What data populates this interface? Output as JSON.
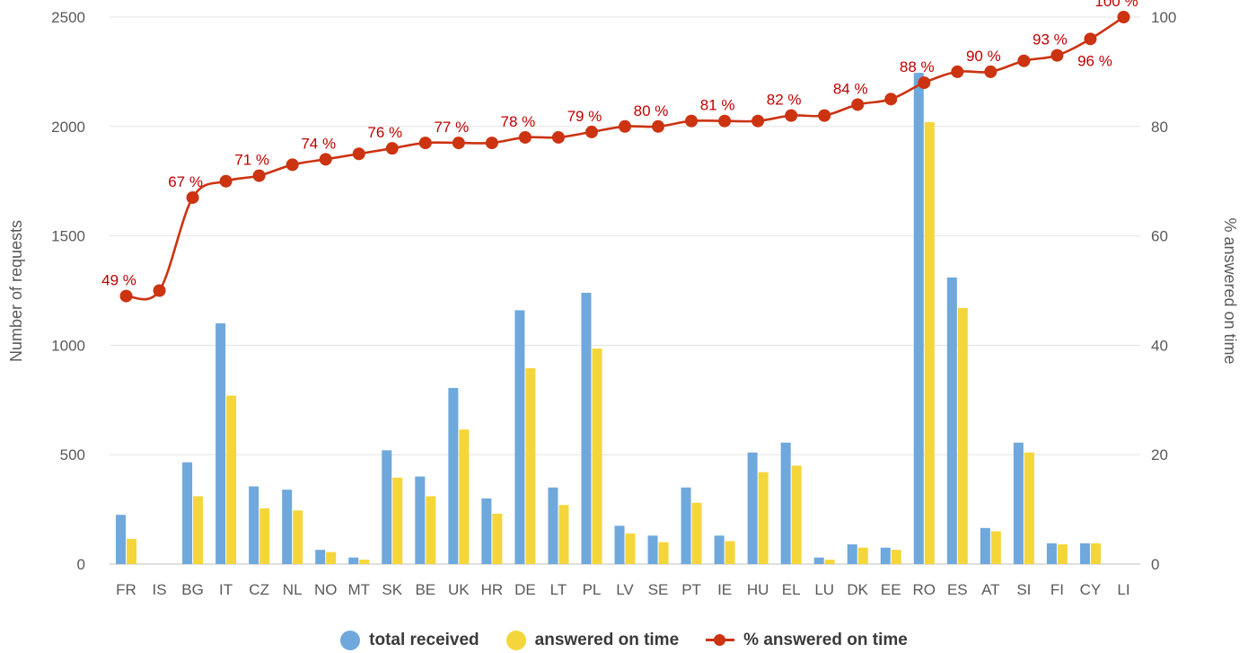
{
  "chart_data": {
    "type": "bar+line",
    "categories": [
      "FR",
      "IS",
      "BG",
      "IT",
      "CZ",
      "NL",
      "NO",
      "MT",
      "SK",
      "BE",
      "UK",
      "HR",
      "DE",
      "LT",
      "PL",
      "LV",
      "SE",
      "PT",
      "IE",
      "HU",
      "EL",
      "LU",
      "DK",
      "EE",
      "RO",
      "ES",
      "AT",
      "SI",
      "FI",
      "CY",
      "LI"
    ],
    "series": [
      {
        "name": "total received",
        "axis": "left",
        "color": "#6fa8dc",
        "values": [
          225,
          0,
          465,
          1100,
          355,
          340,
          65,
          30,
          520,
          400,
          805,
          300,
          1160,
          350,
          1240,
          175,
          130,
          350,
          130,
          510,
          555,
          30,
          90,
          75,
          2245,
          1310,
          165,
          555,
          95,
          95,
          0
        ]
      },
      {
        "name": "answered on time",
        "axis": "left",
        "color": "#f4d63a",
        "values": [
          115,
          0,
          310,
          770,
          255,
          245,
          55,
          20,
          395,
          310,
          615,
          230,
          895,
          270,
          985,
          140,
          100,
          280,
          105,
          420,
          450,
          20,
          75,
          65,
          2020,
          1170,
          150,
          510,
          90,
          95,
          0
        ]
      },
      {
        "name": "% answered on time",
        "axis": "right",
        "color": "#cc3311",
        "values": [
          49,
          50,
          67,
          70,
          71,
          73,
          74,
          75,
          76,
          77,
          77,
          77,
          78,
          78,
          79,
          80,
          80,
          81,
          81,
          81,
          82,
          82,
          84,
          85,
          88,
          90,
          90,
          92,
          93,
          96,
          100
        ]
      }
    ],
    "point_labels": [
      {
        "index": 0,
        "text": "49 %"
      },
      {
        "index": 2,
        "text": "67 %"
      },
      {
        "index": 4,
        "text": "71 %"
      },
      {
        "index": 6,
        "text": "74 %"
      },
      {
        "index": 8,
        "text": "76 %"
      },
      {
        "index": 10,
        "text": "77 %"
      },
      {
        "index": 12,
        "text": "78 %"
      },
      {
        "index": 14,
        "text": "79 %"
      },
      {
        "index": 16,
        "text": "80 %"
      },
      {
        "index": 18,
        "text": "81 %"
      },
      {
        "index": 20,
        "text": "82 %"
      },
      {
        "index": 22,
        "text": "84 %"
      },
      {
        "index": 24,
        "text": "88 %"
      },
      {
        "index": 26,
        "text": "90 %"
      },
      {
        "index": 28,
        "text": "93 %"
      },
      {
        "index": 29,
        "text": "96 %"
      },
      {
        "index": 30,
        "text": "100 %"
      }
    ],
    "ylabel": "Number of requests",
    "ylabel_right": "% answered on time",
    "ylim": [
      0,
      2500
    ],
    "yticks": [
      0,
      500,
      1000,
      1500,
      2000,
      2500
    ],
    "ylim_right": [
      0,
      100
    ],
    "yticks_right": [
      0,
      20,
      40,
      60,
      80,
      100
    ],
    "grid": true,
    "legend_position": "bottom-center"
  },
  "legend": {
    "total_received": "total received",
    "answered_on_time": "answered on time",
    "pct_answered": "% answered on time"
  }
}
